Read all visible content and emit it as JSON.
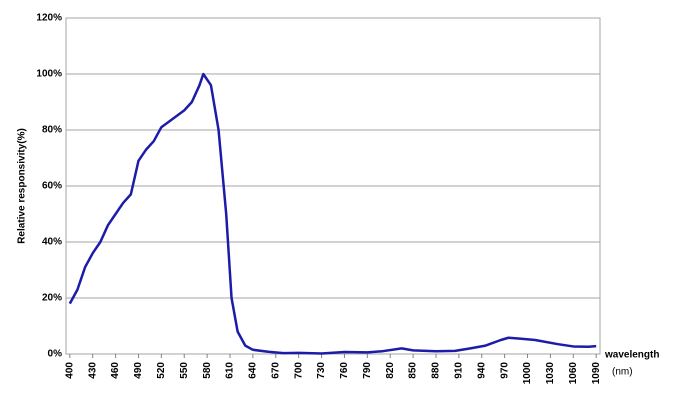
{
  "chart_data": {
    "type": "line",
    "y_label": "Relative responsivity(%)",
    "x_label": "wavelength",
    "x_unit": "(nm)",
    "x": [
      400,
      410,
      420,
      430,
      440,
      450,
      460,
      470,
      480,
      490,
      500,
      510,
      520,
      530,
      540,
      550,
      560,
      570,
      575,
      585,
      595,
      605,
      612,
      620,
      630,
      640,
      660,
      680,
      700,
      730,
      760,
      790,
      810,
      835,
      850,
      880,
      905,
      925,
      945,
      965,
      975,
      990,
      1010,
      1040,
      1060,
      1080,
      1090
    ],
    "series": [
      {
        "color": "#1c1ca8",
        "values": [
          18,
          23,
          31,
          36,
          40,
          46,
          50,
          54,
          57,
          69,
          73,
          76,
          81,
          83,
          85,
          87,
          90,
          96,
          100,
          96,
          80,
          50,
          20,
          8,
          3,
          1.5,
          0.8,
          0.3,
          0.4,
          0.2,
          0.7,
          0.6,
          1,
          2,
          1.3,
          1,
          1.1,
          2,
          3,
          5,
          5.8,
          5.5,
          5,
          3.5,
          2.7,
          2.6,
          2.8
        ]
      }
    ],
    "xlim": [
      395,
      1095
    ],
    "xticks": [
      400,
      430,
      460,
      490,
      520,
      550,
      580,
      610,
      640,
      670,
      700,
      730,
      760,
      790,
      820,
      850,
      880,
      910,
      940,
      970,
      1000,
      1030,
      1060,
      1090
    ],
    "ylim": [
      0,
      120
    ],
    "yticks": [
      {
        "value": 0,
        "label": "0%"
      },
      {
        "value": 20,
        "label": "20%"
      },
      {
        "value": 40,
        "label": "40%"
      },
      {
        "value": 60,
        "label": "60%"
      },
      {
        "value": 80,
        "label": "80%"
      },
      {
        "value": 100,
        "label": "100%"
      },
      {
        "value": 120,
        "label": "120%"
      }
    ],
    "grid": true
  }
}
